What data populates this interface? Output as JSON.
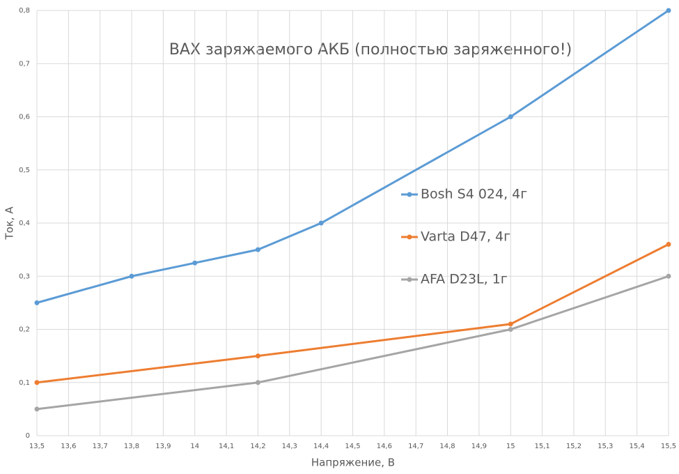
{
  "chart_data": {
    "type": "line",
    "title": "ВАХ заряжаемого АКБ (полностью заряженного!)",
    "x_label": "Напряжение, В",
    "y_label": "Ток, А",
    "xlim": [
      13.5,
      15.5
    ],
    "ylim": [
      0,
      0.8
    ],
    "xticks": [
      {
        "value": 13.5,
        "label": "13,5"
      },
      {
        "value": 13.6,
        "label": "13,6"
      },
      {
        "value": 13.7,
        "label": "13,7"
      },
      {
        "value": 13.8,
        "label": "13,8"
      },
      {
        "value": 13.9,
        "label": "13,9"
      },
      14,
      {
        "value": 14.1,
        "label": "14,1"
      },
      {
        "value": 14.2,
        "label": "14,2"
      },
      {
        "value": 14.3,
        "label": "14,3"
      },
      {
        "value": 14.4,
        "label": "14,4"
      },
      {
        "value": 14.5,
        "label": "14,5"
      },
      {
        "value": 14.6,
        "label": "14,6"
      },
      {
        "value": 14.7,
        "label": "14,7"
      },
      {
        "value": 14.8,
        "label": "14,8"
      },
      {
        "value": 14.9,
        "label": "14,9"
      },
      15,
      {
        "value": 15.1,
        "label": "15,1"
      },
      {
        "value": 15.2,
        "label": "15,2"
      },
      {
        "value": 15.3,
        "label": "15,3"
      },
      {
        "value": 15.4,
        "label": "15,4"
      },
      {
        "value": 15.5,
        "label": "15,5"
      }
    ],
    "yticks": [
      0,
      {
        "value": 0.1,
        "label": "0,1"
      },
      {
        "value": 0.2,
        "label": "0,2"
      },
      {
        "value": 0.3,
        "label": "0,3"
      },
      {
        "value": 0.4,
        "label": "0,4"
      },
      {
        "value": 0.5,
        "label": "0,5"
      },
      {
        "value": 0.6,
        "label": "0,6"
      },
      {
        "value": 0.7,
        "label": "0,7"
      },
      {
        "value": 0.8,
        "label": "0,8"
      }
    ],
    "grid": true,
    "legend": "right",
    "series": [
      {
        "name": "Bosh S4 024, 4г",
        "color": "#5b9bd5",
        "x": [
          13.5,
          13.8,
          14.0,
          14.2,
          14.4,
          15.0,
          15.5
        ],
        "values": [
          0.25,
          0.3,
          0.325,
          0.35,
          0.4,
          0.6,
          0.8
        ]
      },
      {
        "name": "Varta D47, 4г",
        "color": "#ed7d31",
        "x": [
          13.5,
          14.2,
          15.0,
          15.5
        ],
        "values": [
          0.1,
          0.15,
          0.21,
          0.36
        ]
      },
      {
        "name": "AFA D23L, 1г",
        "color": "#a5a5a5",
        "x": [
          13.5,
          14.2,
          15.0,
          15.5
        ],
        "values": [
          0.05,
          0.1,
          0.2,
          0.3
        ]
      }
    ]
  }
}
